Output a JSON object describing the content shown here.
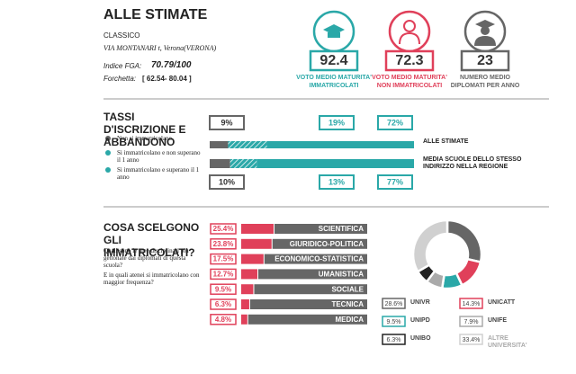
{
  "header": {
    "title": "ALLE STIMATE",
    "school_type": "CLASSICO",
    "address": "VIA MONTANARI t, Verona(VERONA)",
    "fga_label": "Indice FGA:",
    "fga_value": "70.79/100",
    "range_label": "Forchetta:",
    "range_value": "[ 62.54- 80.04 ]"
  },
  "kpis": [
    {
      "value": 92.4,
      "label_lines": [
        "VOTO MEDIO MATURITA'",
        "IMMATRICOLATI"
      ],
      "color": "#2aa8a8"
    },
    {
      "value": 72.3,
      "label_lines": [
        "VOTO MEDIO MATURITA'",
        "NON IMMATRICOLATI"
      ],
      "color": "#e0405a"
    },
    {
      "value": 23,
      "label_lines": [
        "NUMERO MEDIO",
        "DIPLOMATI PER ANNO"
      ],
      "color": "#666666"
    }
  ],
  "chart_data": [
    {
      "type": "stacked-hbar",
      "title": "TASSI D'ISCRIZIONE E ABBANDONO",
      "categories": [
        "ALLE STIMATE",
        "MEDIA SCUOLE DELLO STESSO INDIRIZZO NELLA REGIONE"
      ],
      "series": [
        {
          "name": "Non si immatricolano",
          "color": "#666666",
          "values": [
            9,
            10
          ],
          "value_labels": [
            "9%",
            "10%"
          ]
        },
        {
          "name": "Si immatricolano e non superano il 1 anno",
          "color": "#2aa8a8",
          "hatch": true,
          "values": [
            19,
            13
          ],
          "value_labels": [
            "19%",
            "13%"
          ]
        },
        {
          "name": "Si immatricolano e superano il 1 anno",
          "color": "#2aa8a8",
          "values": [
            72,
            77
          ],
          "value_labels": [
            "72%",
            "77%"
          ]
        }
      ]
    },
    {
      "type": "hbar",
      "title": "COSA SCELGONO GLI IMMATRICOLATI?",
      "subtitle": "Quali sono le aree disciplinari più gettonate dai diplomati di questa scuola?",
      "subtitle2": "E in quali atenei si immatricolano con maggior frequenza?",
      "categories": [
        "SCIENTIFICA",
        "GIURIDICO-POLITICA",
        "ECONOMICO-STATISTICA",
        "UMANISTICA",
        "SOCIALE",
        "TECNICA",
        "MEDICA"
      ],
      "values": [
        25.4,
        23.8,
        17.5,
        12.7,
        9.5,
        6.3,
        4.8
      ],
      "value_labels": [
        "25.4%",
        "23.8%",
        "17.5%",
        "12.7%",
        "9.5%",
        "6.3%",
        "4.8%"
      ],
      "color": "#e0405a"
    },
    {
      "type": "donut",
      "categories": [
        "UNIVR",
        "UNICATT",
        "UNIPD",
        "UNIFE",
        "UNIBO",
        "ALTRE UNIVERSITA'"
      ],
      "values": [
        28.6,
        14.3,
        9.5,
        7.9,
        6.3,
        33.4
      ],
      "value_labels": [
        "28.6%",
        "14.3%",
        "9.5%",
        "7.9%",
        "6.3%",
        "33.4%"
      ],
      "colors": [
        "#666666",
        "#e0405a",
        "#2aa8a8",
        "#aaaaaa",
        "#222222",
        "#d0d0d0"
      ]
    }
  ]
}
